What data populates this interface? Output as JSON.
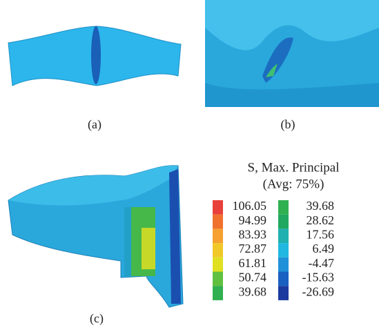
{
  "panels": [
    {
      "label": "(a)"
    },
    {
      "label": "(b)"
    },
    {
      "label": "(c)"
    }
  ],
  "legend": {
    "title": "S, Max. Principal",
    "subtitle": "(Avg: 75%)",
    "columns": [
      [
        {
          "value": 106.05,
          "color": "#e8403a"
        },
        {
          "value": 94.99,
          "color": "#f0702e"
        },
        {
          "value": 83.93,
          "color": "#f5a030"
        },
        {
          "value": 72.87,
          "color": "#f0c828"
        },
        {
          "value": 61.81,
          "color": "#e0e020"
        },
        {
          "value": 50.74,
          "color": "#60c040"
        },
        {
          "value": 39.68,
          "color": "#30b050"
        }
      ],
      [
        {
          "value": 39.68,
          "color": "#30b050"
        },
        {
          "value": 28.62,
          "color": "#20a860"
        },
        {
          "value": 17.56,
          "color": "#20b0b0"
        },
        {
          "value": 6.49,
          "color": "#20b8e0"
        },
        {
          "value": -4.47,
          "color": "#2090d8"
        },
        {
          "value": -15.63,
          "color": "#1a60c0"
        },
        {
          "value": -26.69,
          "color": "#1a3aa0"
        }
      ]
    ]
  }
}
